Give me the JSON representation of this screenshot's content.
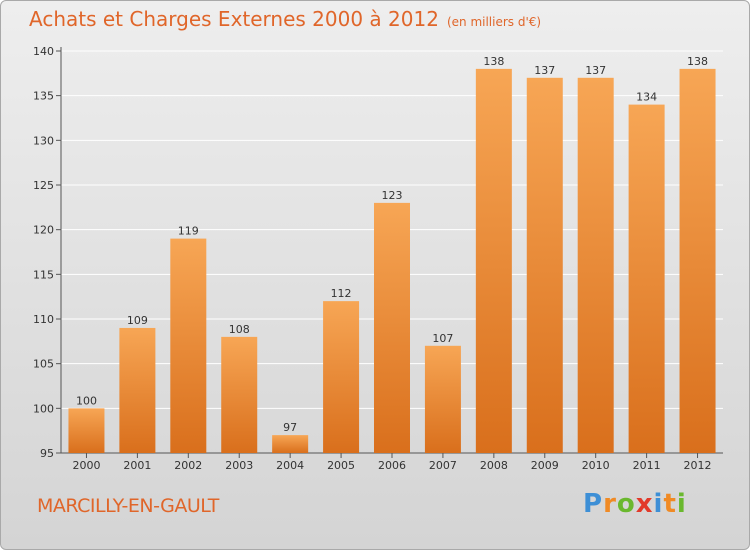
{
  "header": {
    "title": "Achats et Charges Externes 2000 à 2012",
    "unit": "(en milliers d'€)"
  },
  "footer": {
    "town": "MARCILLY-EN-GAULT",
    "brand": "Proxiti"
  },
  "colors": {
    "accent": "#e0662a",
    "bar_light": "#f7a655",
    "bar_dark": "#d96f1c",
    "grid": "#ffffff",
    "logo_letters": [
      "#3d8fd6",
      "#f08a24",
      "#6ab82e",
      "#e23a2a",
      "#3d8fd6",
      "#f08a24",
      "#6ab82e"
    ]
  },
  "chart_data": {
    "type": "bar",
    "title": "Achats et Charges Externes 2000 à 2012",
    "subtitle": "(en milliers d'€)",
    "xlabel": "",
    "ylabel": "",
    "categories": [
      "2000",
      "2001",
      "2002",
      "2003",
      "2004",
      "2005",
      "2006",
      "2007",
      "2008",
      "2009",
      "2010",
      "2011",
      "2012"
    ],
    "values": [
      100,
      109,
      119,
      108,
      97,
      112,
      123,
      107,
      138,
      137,
      137,
      134,
      138
    ],
    "ylim": [
      95,
      140
    ],
    "yticks": [
      95,
      100,
      105,
      110,
      115,
      120,
      125,
      130,
      135,
      140
    ],
    "grid": true,
    "legend": "none"
  }
}
